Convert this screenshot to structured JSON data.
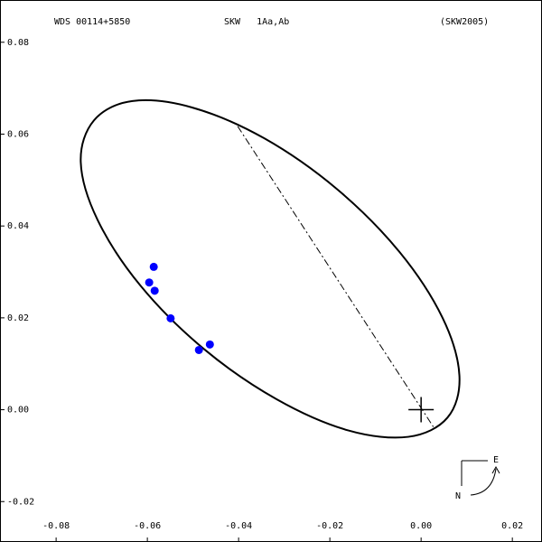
{
  "chart_data": {
    "type": "scatter",
    "header": [
      "WDS 00114+5850",
      "SKW   1Aa,Ab",
      "(SKW2005)"
    ],
    "xlim": [
      -0.0923,
      0.0265
    ],
    "ylim": [
      -0.0288,
      0.0892
    ],
    "xticks": [
      {
        "value": -0.08,
        "label": "-0.08"
      },
      {
        "value": -0.06,
        "label": "-0.06"
      },
      {
        "value": -0.04,
        "label": "-0.04"
      },
      {
        "value": -0.02,
        "label": "-0.02"
      },
      {
        "value": 0,
        "label": "0.00"
      },
      {
        "value": 0.02,
        "label": "0.02"
      }
    ],
    "yticks": [
      {
        "value": -0.02,
        "label": "-0.02"
      },
      {
        "value": 0,
        "label": "0.00"
      },
      {
        "value": 0.02,
        "label": "0.02"
      },
      {
        "value": 0.04,
        "label": "0.04"
      },
      {
        "value": 0.06,
        "label": "0.06"
      },
      {
        "value": 0.08,
        "label": "0.08"
      }
    ],
    "observations": {
      "color": "#0000ff",
      "x": [
        -0.0586,
        -0.0596,
        -0.0584,
        -0.0549,
        -0.0487,
        -0.0463
      ],
      "y": [
        0.0311,
        0.0277,
        0.0259,
        0.0199,
        0.013,
        0.0142
      ]
    },
    "orbit": {
      "color": "#000000",
      "x": [
        0.0058,
        -0.0028,
        -0.016,
        -0.0317,
        -0.0477,
        -0.0615,
        -0.0709,
        -0.0746,
        -0.0717,
        -0.0633,
        -0.0502,
        -0.0344,
        -0.0184,
        -0.0047,
        0.0047,
        0.0084
      ],
      "y": [
        -0.0017,
        -0.0059,
        -0.0045,
        0.0023,
        0.0133,
        0.027,
        0.0413,
        0.0539,
        0.063,
        0.0672,
        0.0658,
        0.0591,
        0.048,
        0.0343,
        0.02,
        0.0074
      ]
    },
    "line_of_nodes": {
      "x": [
        -0.0402,
        0.0028
      ],
      "y": [
        0.0617,
        -0.0039
      ]
    },
    "primary": {
      "x": 0,
      "y": 0
    },
    "compass": {
      "north": "N",
      "east": "E"
    }
  }
}
